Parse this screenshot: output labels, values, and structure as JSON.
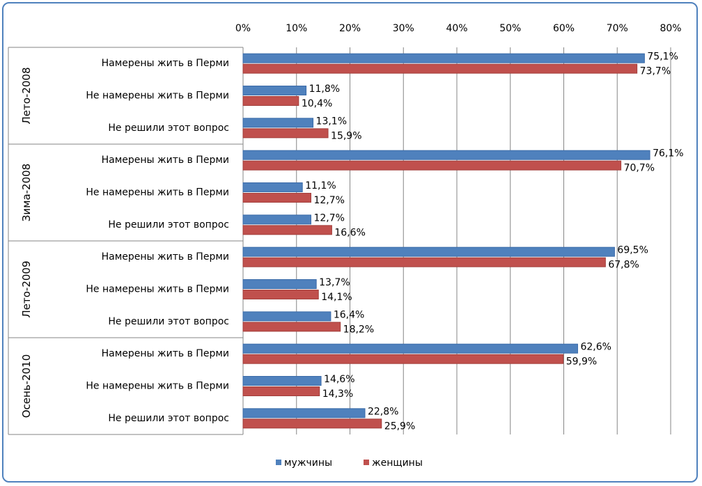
{
  "chart_data": {
    "type": "bar",
    "orientation": "horizontal",
    "title": "",
    "xlabel": "",
    "ylabel": "",
    "xlim": [
      0,
      80
    ],
    "x_ticks": [
      "0%",
      "10%",
      "20%",
      "30%",
      "40%",
      "50%",
      "60%",
      "70%",
      "80%"
    ],
    "grid": "vertical gridlines",
    "legend_position": "bottom",
    "value_format": "percent-comma",
    "colors": {
      "мужчины": "#4f81bd",
      "женщины": "#c0504d"
    },
    "groups": [
      {
        "label": "Лето-2008",
        "categories": [
          "Намерены жить в Перми",
          "Не намерены жить в Перми",
          "Не решили этот вопрос"
        ]
      },
      {
        "label": "Зима-2008",
        "categories": [
          "Намерены жить в Перми",
          "Не намерены жить в Перми",
          "Не решили этот вопрос"
        ]
      },
      {
        "label": "Лето-2009",
        "categories": [
          "Намерены жить в Перми",
          "Не намерены жить в Перми",
          "Не решили этот вопрос"
        ]
      },
      {
        "label": "Осень-2010",
        "categories": [
          "Намерены жить в Перми",
          "Не намерены жить в Перми",
          "Не решили этот вопрос"
        ]
      }
    ],
    "series": [
      {
        "name": "мужчины",
        "values": [
          75.1,
          11.8,
          13.1,
          76.1,
          11.1,
          12.7,
          69.5,
          13.7,
          16.4,
          62.6,
          14.6,
          22.8
        ]
      },
      {
        "name": "женщины",
        "values": [
          73.7,
          10.4,
          15.9,
          70.7,
          12.7,
          16.6,
          67.8,
          14.1,
          18.2,
          59.9,
          14.3,
          25.9
        ]
      }
    ]
  }
}
